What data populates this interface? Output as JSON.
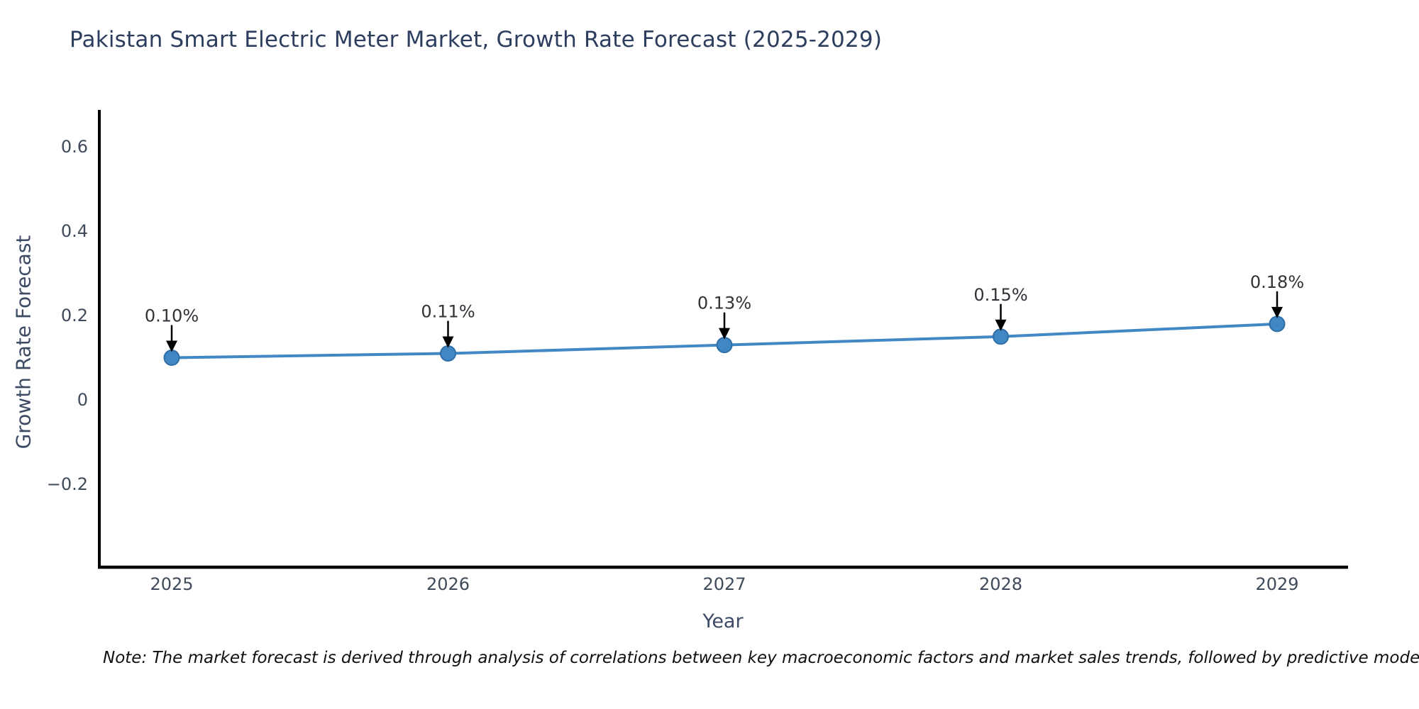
{
  "chart_data": {
    "type": "line",
    "title": "Pakistan Smart Electric Meter Market, Growth Rate Forecast (2025-2029)",
    "xlabel": "Year",
    "ylabel": "Growth Rate Forecast",
    "categories": [
      "2025",
      "2026",
      "2027",
      "2028",
      "2029"
    ],
    "series": [
      {
        "name": "Growth Rate Forecast",
        "values": [
          0.1,
          0.11,
          0.13,
          0.15,
          0.18
        ],
        "point_labels": [
          "0.10%",
          "0.11%",
          "0.13%",
          "0.15%",
          "0.18%"
        ]
      }
    ],
    "ylim": [
      -0.4,
      0.68
    ],
    "yticks": {
      "values": [
        0.6,
        0.4,
        0.2,
        0,
        -0.2
      ],
      "labels": [
        "0.6",
        "0.4",
        "0.2",
        "0",
        "−0.2"
      ]
    },
    "grid": false,
    "legend": "none",
    "annotation_style": "value label with black down arrow to each point",
    "colors": {
      "line": "#4288c5",
      "marker_fill": "#4187c4",
      "marker_edge": "#2f6fa8",
      "spine": "#000000",
      "arrow": "#000000",
      "annotation_text": "#2f3338",
      "tick_text": "#3f4a5a",
      "axis_label_text": "#3c4a63",
      "title_text": "#2c3d5e"
    }
  },
  "note": {
    "text": "Note: The market forecast is derived through analysis of correlations between key macroeconomic factors and market sales trends, followed by predictive modeling to project future sales."
  }
}
